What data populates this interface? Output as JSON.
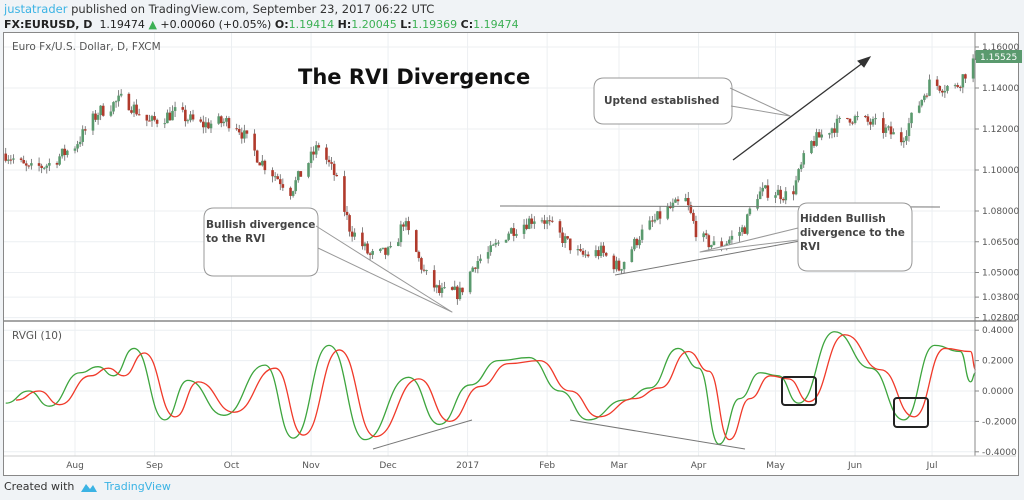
{
  "header": {
    "user": "justatrader",
    "published": "published on TradingView.com, September 23, 2017 06:22 UTC",
    "symbol": "FX:EURUSD, D",
    "last": "1.19474",
    "change": "+0.00060 (+0.05%)",
    "o_label": "O:",
    "o": "1.19414",
    "h_label": "H:",
    "h": "1.20045",
    "l_label": "L:",
    "l": "1.19369",
    "c_label": "C:",
    "c": "1.19474",
    "up_icon": "triangle-up-icon"
  },
  "footer": {
    "created_with": "Created with",
    "brand": "TradingView",
    "logo_icon": "tradingview-logo-icon"
  },
  "colors": {
    "up": "#5a9a6e",
    "down": "#b03a2c",
    "rvgi": "#3ea53e",
    "signal": "#f03a2a",
    "last_price_bg": "#5a9a6e",
    "accent": "#3bb3e4"
  },
  "chart_data": [
    {
      "type": "candlestick",
      "legend": "Euro Fx/U.S. Dollar, D, FXCM",
      "annotation_title": "The RVI Divergence",
      "y_ticks": [
        "1.16000",
        "1.14000",
        "1.12000",
        "1.10000",
        "1.08000",
        "1.06500",
        "1.05000",
        "1.03800",
        "1.02800"
      ],
      "y_tick_values": [
        1.16,
        1.14,
        1.12,
        1.1,
        1.08,
        1.065,
        1.05,
        1.038,
        1.028
      ],
      "last_price_label": "1.15525",
      "last_price": 1.15525,
      "x_ticks": [
        "Aug",
        "Sep",
        "Oct",
        "Nov",
        "Dec",
        "2017",
        "Feb",
        "Mar",
        "Apr",
        "May",
        "Jun",
        "Jul"
      ],
      "x_tick_dates": [
        "2016-08-01",
        "2016-09-01",
        "2016-10-01",
        "2016-11-01",
        "2016-12-01",
        "2017-01-01",
        "2017-02-01",
        "2017-03-01",
        "2017-04-01",
        "2017-05-01",
        "2017-06-01",
        "2017-07-01"
      ],
      "grid": true,
      "close_path": [
        [
          "2016-07-05",
          1.108
        ],
        [
          "2016-07-14",
          1.1
        ],
        [
          "2016-07-22",
          1.103
        ],
        [
          "2016-08-01",
          1.112
        ],
        [
          "2016-08-10",
          1.128
        ],
        [
          "2016-08-20",
          1.135
        ],
        [
          "2016-08-30",
          1.123
        ],
        [
          "2016-09-09",
          1.128
        ],
        [
          "2016-09-19",
          1.122
        ],
        [
          "2016-10-02",
          1.124
        ],
        [
          "2016-10-12",
          1.105
        ],
        [
          "2016-10-24",
          1.09
        ],
        [
          "2016-11-04",
          1.112
        ],
        [
          "2016-11-10",
          1.098
        ],
        [
          "2016-11-16",
          1.072
        ],
        [
          "2016-11-24",
          1.058
        ],
        [
          "2016-12-03",
          1.06
        ],
        [
          "2016-12-07",
          1.075
        ],
        [
          "2016-12-15",
          1.05
        ],
        [
          "2016-12-21",
          1.04
        ],
        [
          "2016-12-29",
          1.04
        ],
        [
          "2017-01-04",
          1.055
        ],
        [
          "2017-01-10",
          1.06
        ],
        [
          "2017-01-17",
          1.07
        ],
        [
          "2017-01-29",
          1.078
        ],
        [
          "2017-02-06",
          1.068
        ],
        [
          "2017-02-14",
          1.058
        ],
        [
          "2017-02-22",
          1.06
        ],
        [
          "2017-03-01",
          1.052
        ],
        [
          "2017-03-09",
          1.068
        ],
        [
          "2017-03-19",
          1.08
        ],
        [
          "2017-03-27",
          1.085
        ],
        [
          "2017-04-01",
          1.067
        ],
        [
          "2017-04-09",
          1.062
        ],
        [
          "2017-04-19",
          1.072
        ],
        [
          "2017-04-23",
          1.088
        ],
        [
          "2017-04-29",
          1.09
        ],
        [
          "2017-05-07",
          1.087
        ],
        [
          "2017-05-14",
          1.112
        ],
        [
          "2017-05-22",
          1.12
        ],
        [
          "2017-05-30",
          1.126
        ],
        [
          "2017-06-09",
          1.122
        ],
        [
          "2017-06-19",
          1.115
        ],
        [
          "2017-06-25",
          1.13
        ],
        [
          "2017-06-30",
          1.142
        ],
        [
          "2017-07-10",
          1.14
        ],
        [
          "2017-07-18",
          1.155
        ]
      ],
      "annotations": [
        {
          "text": "Bullish divergence to the RVI"
        },
        {
          "text": "Uptend established"
        },
        {
          "text": "Hidden Bullish divergence to the RVI"
        }
      ]
    },
    {
      "type": "line",
      "legend": "RVGI (10)",
      "y_ticks": [
        "0.4000",
        "0.2000",
        "0.0000",
        "-0.2000",
        "-0.4000"
      ],
      "y_tick_values": [
        0.4,
        0.2,
        0.0,
        -0.2,
        -0.4
      ],
      "ylim": [
        -0.4,
        0.4
      ],
      "series": [
        {
          "color": "#3ea53e",
          "points": [
            [
              "2016-07-05",
              -0.08
            ],
            [
              "2016-07-14",
              0.0
            ],
            [
              "2016-07-22",
              -0.1
            ],
            [
              "2016-08-03",
              0.12
            ],
            [
              "2016-08-10",
              0.16
            ],
            [
              "2016-08-16",
              0.1
            ],
            [
              "2016-08-24",
              0.28
            ],
            [
              "2016-09-05",
              -0.19
            ],
            [
              "2016-09-14",
              0.07
            ],
            [
              "2016-09-28",
              -0.16
            ],
            [
              "2016-10-14",
              0.17
            ],
            [
              "2016-10-25",
              -0.31
            ],
            [
              "2016-11-08",
              0.3
            ],
            [
              "2016-11-22",
              -0.32
            ],
            [
              "2016-12-09",
              0.09
            ],
            [
              "2016-12-21",
              -0.22
            ],
            [
              "2017-01-02",
              0.04
            ],
            [
              "2017-01-13",
              0.2
            ],
            [
              "2017-01-25",
              0.22
            ],
            [
              "2017-02-06",
              0.0
            ],
            [
              "2017-02-17",
              -0.19
            ],
            [
              "2017-03-03",
              -0.06
            ],
            [
              "2017-03-13",
              0.02
            ],
            [
              "2017-03-24",
              0.28
            ],
            [
              "2017-04-01",
              0.15
            ],
            [
              "2017-04-09",
              -0.35
            ],
            [
              "2017-04-17",
              -0.05
            ],
            [
              "2017-04-25",
              0.12
            ],
            [
              "2017-05-02",
              0.1
            ],
            [
              "2017-05-10",
              -0.08
            ],
            [
              "2017-05-24",
              0.39
            ],
            [
              "2017-06-07",
              0.15
            ],
            [
              "2017-06-20",
              -0.19
            ],
            [
              "2017-07-02",
              0.3
            ],
            [
              "2017-07-12",
              0.26
            ],
            [
              "2017-07-16",
              0.06
            ],
            [
              "2017-07-18",
              0.12
            ]
          ]
        },
        {
          "color": "#f03a2a",
          "points": [
            [
              "2016-07-09",
              -0.06
            ],
            [
              "2016-07-18",
              0.0
            ],
            [
              "2016-07-26",
              -0.09
            ],
            [
              "2016-08-07",
              0.1
            ],
            [
              "2016-08-14",
              0.15
            ],
            [
              "2016-08-20",
              0.1
            ],
            [
              "2016-08-28",
              0.25
            ],
            [
              "2016-09-09",
              -0.17
            ],
            [
              "2016-09-18",
              0.06
            ],
            [
              "2016-10-02",
              -0.14
            ],
            [
              "2016-10-18",
              0.15
            ],
            [
              "2016-10-29",
              -0.29
            ],
            [
              "2016-11-12",
              0.27
            ],
            [
              "2016-11-26",
              -0.3
            ],
            [
              "2016-12-13",
              0.08
            ],
            [
              "2016-12-25",
              -0.2
            ],
            [
              "2017-01-06",
              0.03
            ],
            [
              "2017-01-17",
              0.18
            ],
            [
              "2017-01-29",
              0.2
            ],
            [
              "2017-02-10",
              0.0
            ],
            [
              "2017-02-21",
              -0.17
            ],
            [
              "2017-03-07",
              -0.05
            ],
            [
              "2017-03-17",
              0.02
            ],
            [
              "2017-03-28",
              0.26
            ],
            [
              "2017-04-05",
              0.13
            ],
            [
              "2017-04-13",
              -0.32
            ],
            [
              "2017-04-21",
              -0.05
            ],
            [
              "2017-04-29",
              0.1
            ],
            [
              "2017-05-06",
              0.08
            ],
            [
              "2017-05-14",
              -0.07
            ],
            [
              "2017-05-28",
              0.37
            ],
            [
              "2017-06-11",
              0.14
            ],
            [
              "2017-06-24",
              -0.17
            ],
            [
              "2017-07-06",
              0.28
            ],
            [
              "2017-07-16",
              0.26
            ],
            [
              "2017-07-18",
              0.14
            ]
          ]
        }
      ]
    }
  ]
}
